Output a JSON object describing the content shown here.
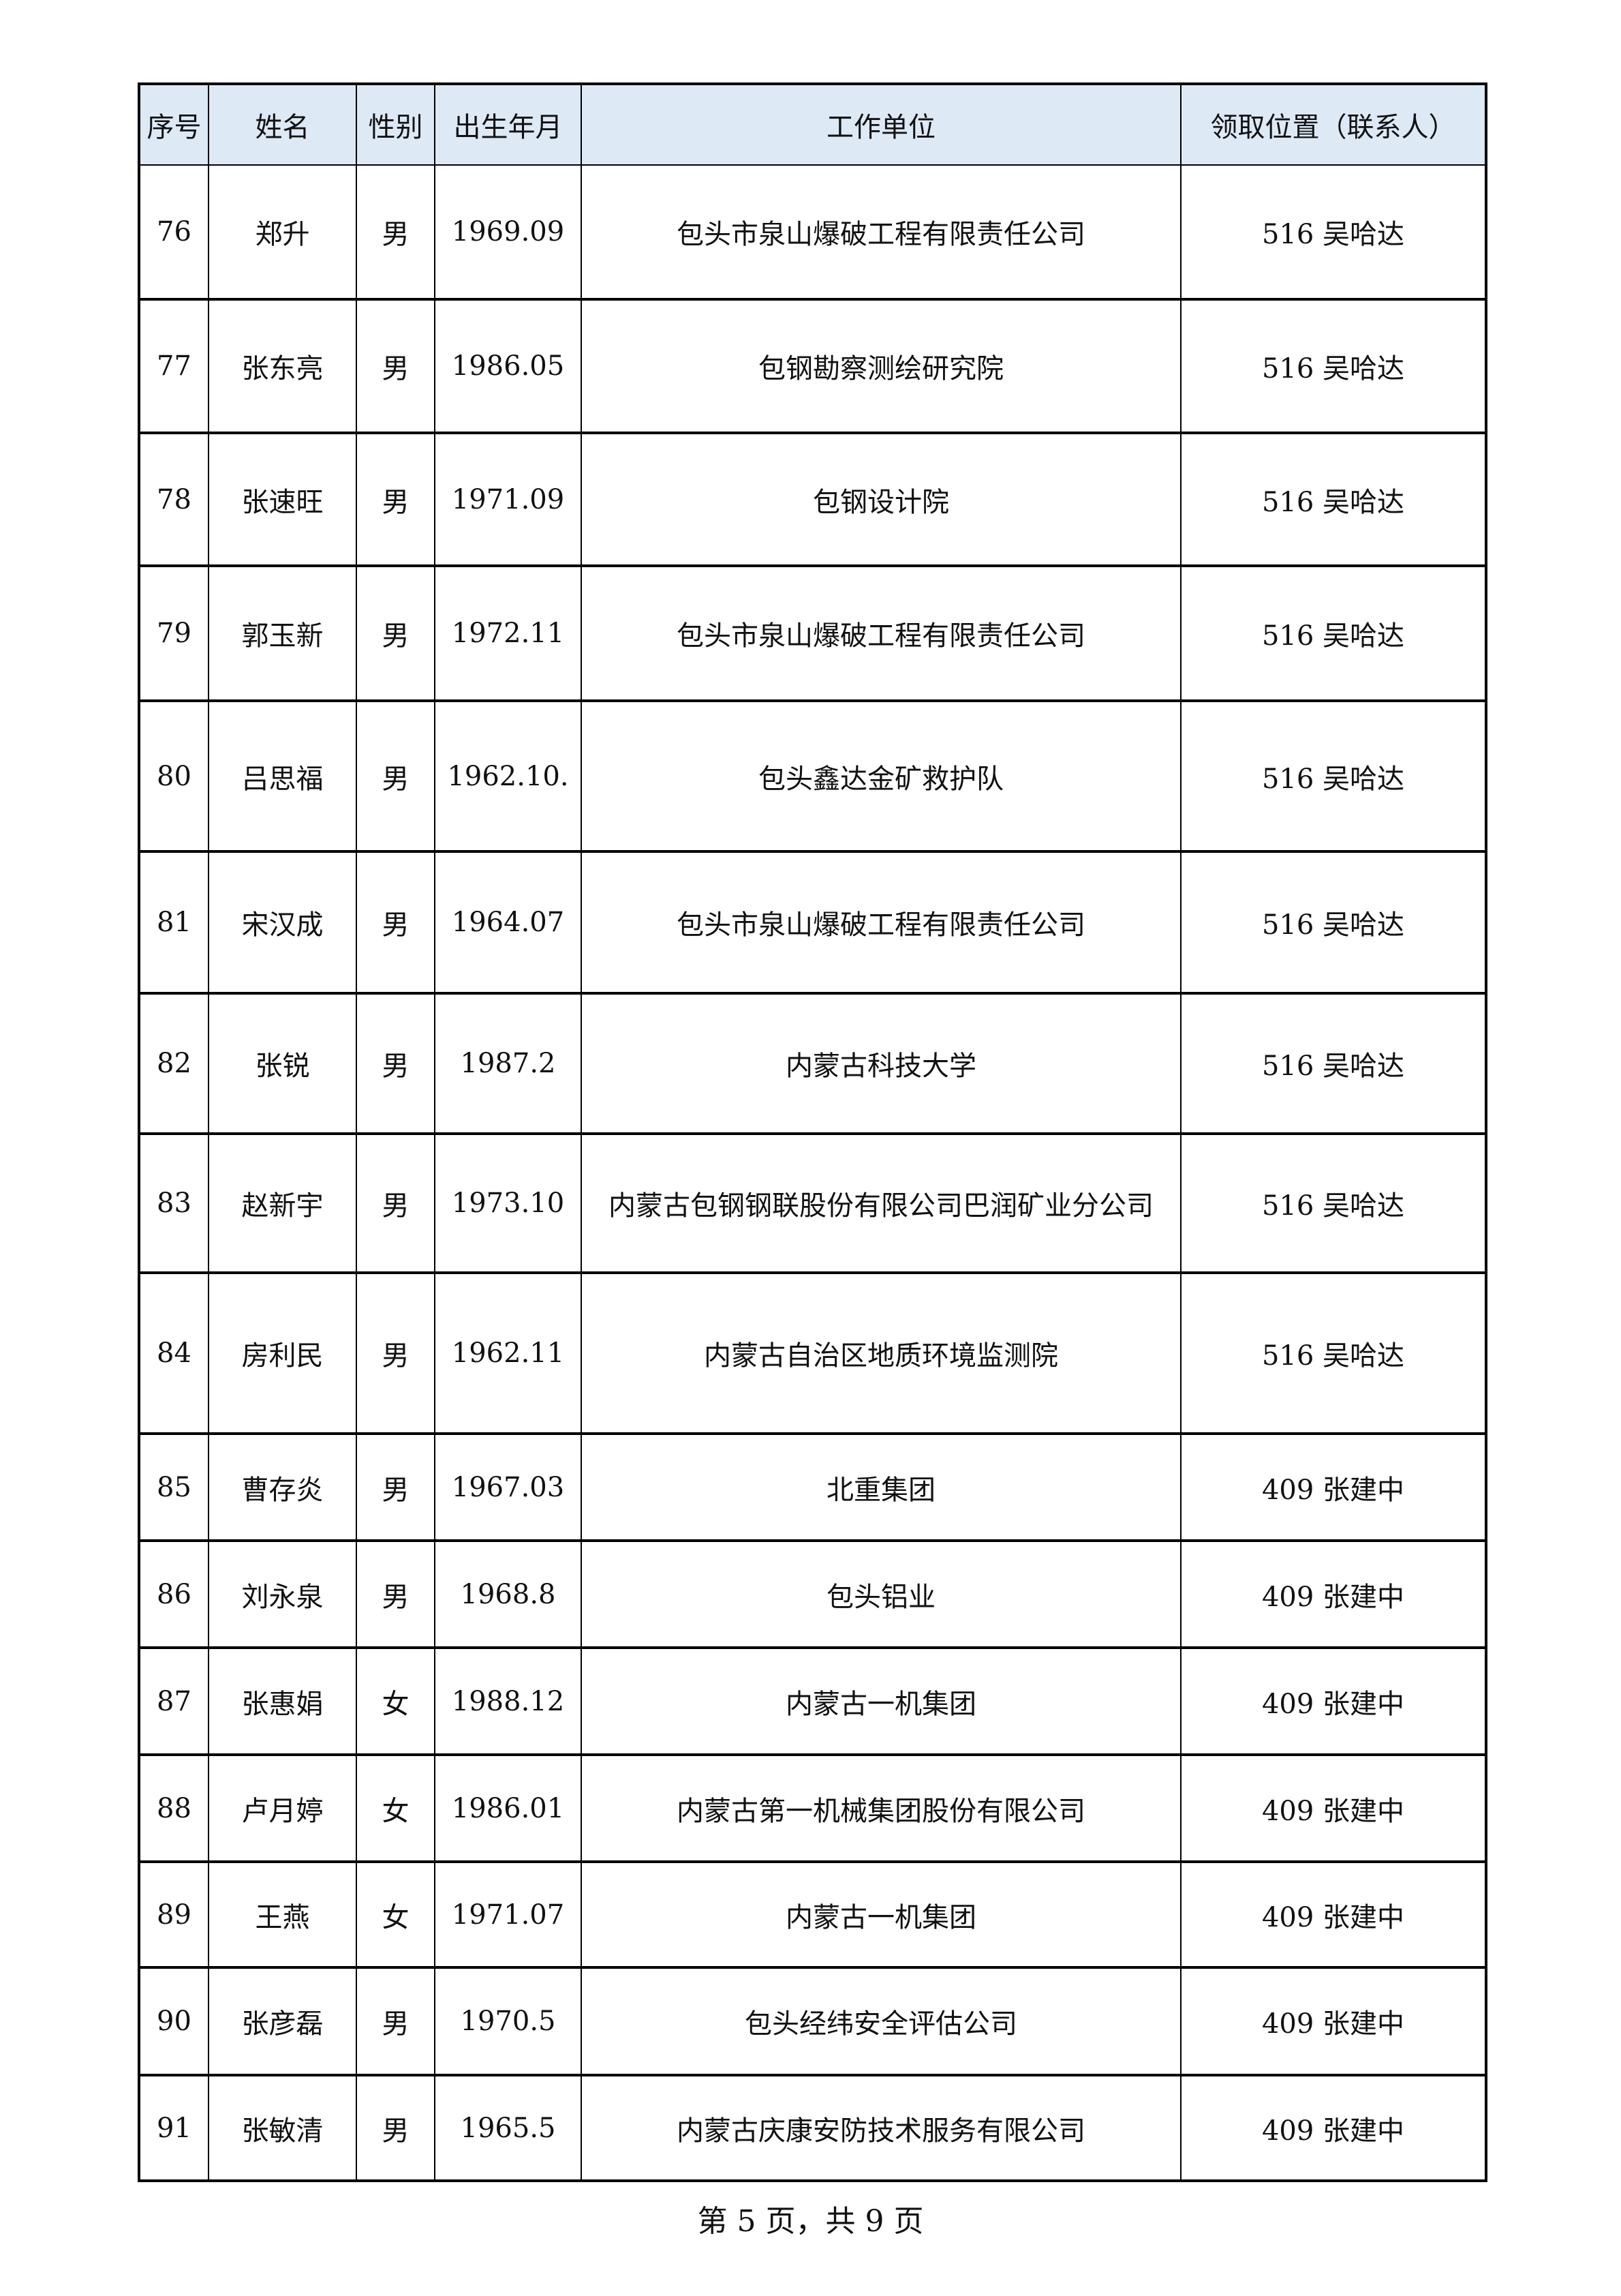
{
  "headers": [
    "序号",
    "姓名",
    "性别",
    "出生年月",
    "工作单位",
    "领取位置（联系人）"
  ],
  "rows": [
    [
      "76",
      "郑升",
      "男",
      "1969.09",
      "包头市泉山爆破工程有限责任公司",
      "516 吴哈达"
    ],
    [
      "77",
      "张东亮",
      "男",
      "1986.05",
      "包钢勘察测绘研究院",
      "516 吴哈达"
    ],
    [
      "78",
      "张速旺",
      "男",
      "1971.09",
      "包钢设计院",
      "516 吴哈达"
    ],
    [
      "79",
      "郭玉新",
      "男",
      "1972.11",
      "包头市泉山爆破工程有限责任公司",
      "516 吴哈达"
    ],
    [
      "80",
      "吕思福",
      "男",
      "1962.10.",
      "包头鑫达金矿救护队",
      "516 吴哈达"
    ],
    [
      "81",
      "宋汉成",
      "男",
      "1964.07",
      "包头市泉山爆破工程有限责任公司",
      "516 吴哈达"
    ],
    [
      "82",
      "张锐",
      "男",
      "1987.2",
      "内蒙古科技大学",
      "516 吴哈达"
    ],
    [
      "83",
      "赵新宇",
      "男",
      "1973.10",
      "内蒙古包钢钢联股份有限公司巴润矿业分公司",
      "516 吴哈达"
    ],
    [
      "84",
      "房利民",
      "男",
      "1962.11",
      "内蒙古自治区地质环境监测院",
      "516 吴哈达"
    ],
    [
      "85",
      "曹存炎",
      "男",
      "1967.03",
      "北重集团",
      "409 张建中"
    ],
    [
      "86",
      "刘永泉",
      "男",
      "1968.8",
      "包头铝业",
      "409 张建中"
    ],
    [
      "87",
      "张惠娟",
      "女",
      "1988.12",
      "内蒙古一机集团",
      "409 张建中"
    ],
    [
      "88",
      "卢月婷",
      "女",
      "1986.01",
      "内蒙古第一机械集团股份有限公司",
      "409 张建中"
    ],
    [
      "89",
      "王燕",
      "女",
      "1971.07",
      "内蒙古一机集团",
      "409 张建中"
    ],
    [
      "90",
      "张彦磊",
      "男",
      "1970.5",
      "包头经纬安全评估公司",
      "409 张建中"
    ],
    [
      "91",
      "张敏清",
      "男",
      "1965.5",
      "内蒙古庆康安防技术服务有限公司",
      "409 张建中"
    ]
  ],
  "footer": "第 5 页，共 9 页",
  "colors": {
    "header_bg": "#dde9f5"
  }
}
